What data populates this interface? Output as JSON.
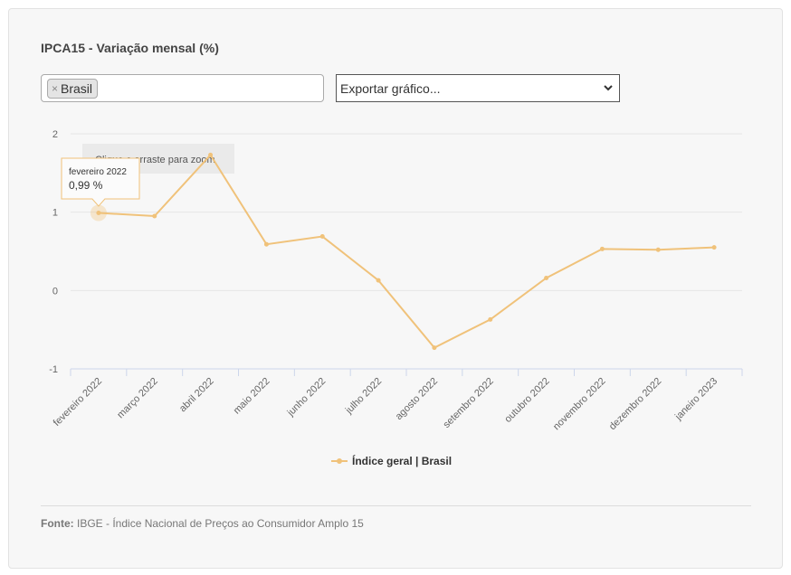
{
  "title": "IPCA15 - Variação mensal (%)",
  "filter": {
    "tag_label": "Brasil",
    "remove_symbol": "×"
  },
  "export": {
    "label": "Exportar gráfico..."
  },
  "zoom_hint": "Clique e arraste para zoom",
  "tooltip": {
    "date": "fevereiro 2022",
    "value": "0,99 %"
  },
  "footer": {
    "source_label": "Fonte:",
    "source_text": "IBGE - Índice Nacional de Preços ao Consumidor Amplo 15"
  },
  "colors": {
    "series": "#f0c27a",
    "grid": "#e6e6e6",
    "axis": "#ccd6eb"
  },
  "chart_data": {
    "type": "line",
    "categories": [
      "fevereiro 2022",
      "março 2022",
      "abril 2022",
      "maio 2022",
      "junho 2022",
      "julho 2022",
      "agosto 2022",
      "setembro 2022",
      "outubro 2022",
      "novembro 2022",
      "dezembro 2022",
      "janeiro 2023"
    ],
    "series": [
      {
        "name": "Índice geral | Brasil",
        "values": [
          0.99,
          0.95,
          1.73,
          0.59,
          0.69,
          0.13,
          -0.73,
          -0.37,
          0.16,
          0.53,
          0.52,
          0.55
        ]
      }
    ],
    "yticks": [
      "2",
      "1",
      "0",
      "-1"
    ],
    "ylim": [
      -1,
      2
    ],
    "grid": true,
    "legend": "bottom-center"
  }
}
